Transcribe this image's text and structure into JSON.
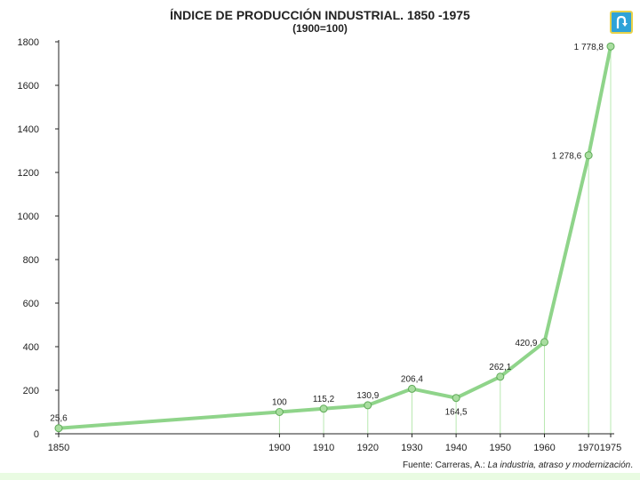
{
  "chart_data": {
    "type": "line",
    "title": "ÍNDICE DE PRODUCCIÓN INDUSTRIAL. 1850 -1975",
    "subtitle": "(1900=100)",
    "xlabel": "",
    "ylabel": "",
    "x": [
      1850,
      1900,
      1910,
      1920,
      1930,
      1940,
      1950,
      1960,
      1970,
      1975
    ],
    "x_tick_labels": [
      "1850",
      "1900",
      "1910",
      "1920",
      "1930",
      "1940",
      "1950",
      "1960",
      "1970",
      "1975"
    ],
    "series": [
      {
        "values": [
          25.6,
          100,
          115.2,
          130.9,
          206.4,
          164.5,
          262.1,
          420.9,
          1278.6,
          1778.8
        ],
        "labels": [
          "25,6",
          "100",
          "115,2",
          "130,9",
          "206,4",
          "164,5",
          "262,1",
          "420,9",
          "1 278,6",
          "1 778,8"
        ],
        "color": "#8fd48a"
      }
    ],
    "y_ticks": [
      0,
      200,
      400,
      600,
      800,
      1000,
      1200,
      1400,
      1600,
      1800
    ],
    "ylim": [
      0,
      1800
    ],
    "grid": true,
    "source": {
      "prefix": "Fuente: Carreras, A.: ",
      "italic": "La industria, atraso y modernización",
      "suffix": "."
    }
  },
  "colors": {
    "line": "#8fd48a",
    "marker_fill": "#a9dea0",
    "marker_stroke": "#5faa58",
    "grid": "#b8e8b0",
    "axis": "#222222",
    "button": "#2fa3d8"
  },
  "icons": {
    "return": "return-arrow-icon"
  }
}
